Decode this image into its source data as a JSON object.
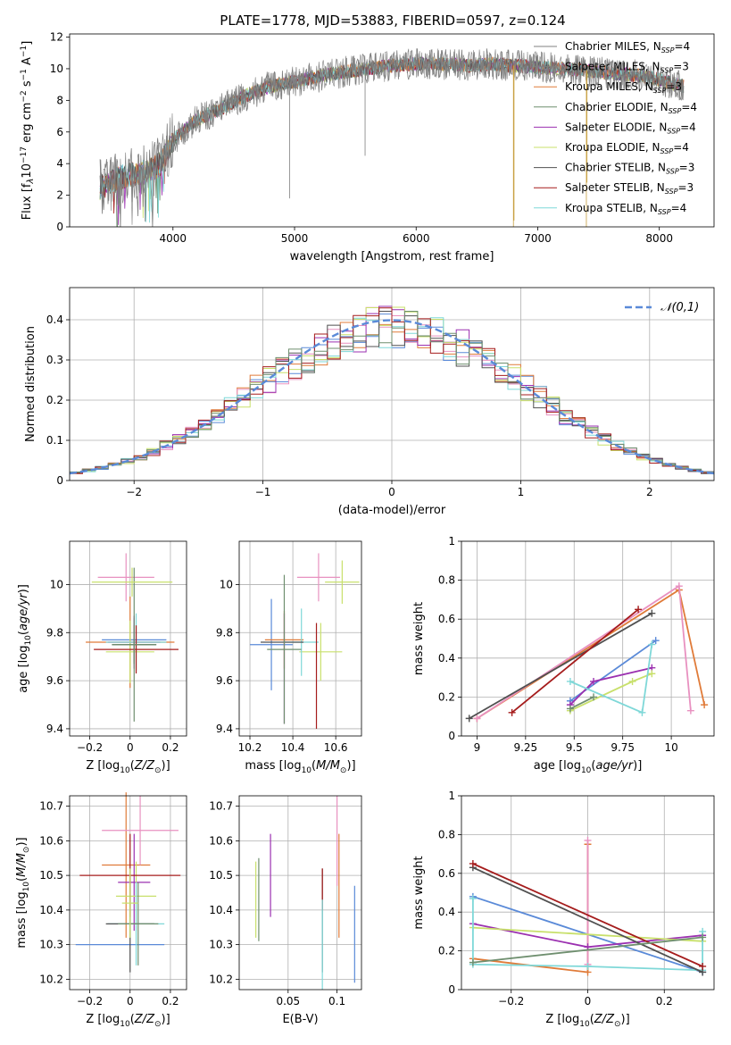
{
  "title": "PLATE=1778, MJD=53883, FIBERID=0597, z=0.124",
  "colors": {
    "chabrier_miles": "#808080",
    "salpeter_miles": "#7f7f7f",
    "kroupa_miles": "#e07b39",
    "chabrier_elodie": "#6f8f6f",
    "salpeter_elodie": "#9b30b0",
    "kroupa_elodie": "#c8e06b",
    "chabrier_stelib": "#505050",
    "salpeter_stelib": "#a51c1c",
    "kroupa_stelib": "#7fd8d8",
    "normal": "#5a8ad8"
  },
  "chart_data": [
    {
      "type": "line",
      "panel": "spectrum",
      "xlabel": "wavelength [Angstrom, rest frame]",
      "ylabel": "Flux [f_λ10^-17 erg cm^-2 s^-1 A^-1]",
      "xlim": [
        3150,
        8450
      ],
      "ylim": [
        0,
        12.2
      ],
      "xticks": [
        4000,
        5000,
        6000,
        7000,
        8000
      ],
      "yticks": [
        0,
        2,
        4,
        6,
        8,
        10,
        12
      ],
      "grid": false,
      "legend_position": "top-right",
      "legend": [
        "Chabrier MILES, N_SSP=4",
        "Salpeter MILES, N_SSP=3",
        "Kroupa MILES, N_SSP=3",
        "Chabrier ELODIE, N_SSP=4",
        "Salpeter ELODIE, N_SSP=4",
        "Kroupa ELODIE, N_SSP=4",
        "Chabrier STELIB, N_SSP=3",
        "Salpeter STELIB, N_SSP=3",
        "Kroupa STELIB, N_SSP=4"
      ],
      "continuum": [
        [
          3400,
          2.5
        ],
        [
          3600,
          3.2
        ],
        [
          3800,
          3.5
        ],
        [
          3900,
          4.0
        ],
        [
          4000,
          5.5
        ],
        [
          4200,
          6.8
        ],
        [
          4400,
          7.5
        ],
        [
          4600,
          8.3
        ],
        [
          4800,
          8.9
        ],
        [
          5000,
          9.2
        ],
        [
          5200,
          9.5
        ],
        [
          5400,
          9.8
        ],
        [
          5600,
          10.0
        ],
        [
          5800,
          10.2
        ],
        [
          6000,
          10.3
        ],
        [
          6200,
          10.3
        ],
        [
          6400,
          10.2
        ],
        [
          6600,
          10.3
        ],
        [
          6800,
          10.2
        ],
        [
          7000,
          10.1
        ],
        [
          7200,
          10.0
        ],
        [
          7400,
          9.9
        ],
        [
          7600,
          9.7
        ],
        [
          7800,
          9.6
        ],
        [
          8000,
          9.3
        ],
        [
          8200,
          8.9
        ]
      ]
    },
    {
      "type": "histogram",
      "panel": "residuals",
      "xlabel": "(data-model)/error",
      "ylabel": "Normed distribution",
      "xlim": [
        -2.5,
        2.5
      ],
      "ylim": [
        0,
        0.48
      ],
      "xticks": [
        -2,
        -1,
        0,
        1,
        2
      ],
      "yticks": [
        0.0,
        0.1,
        0.2,
        0.3,
        0.4
      ],
      "grid": true,
      "legend_position": "top-right",
      "legend_label": "𝒩(0,1)"
    },
    {
      "type": "errorbar",
      "panel": "age-vs-Z",
      "xlabel": "Z [log10(Z/Z⊙)]",
      "ylabel": "age [log10(age/yr)]",
      "xlim": [
        -0.3,
        0.28
      ],
      "ylim": [
        9.37,
        10.18
      ],
      "xticks": [
        -0.2,
        0.0,
        0.2
      ],
      "yticks": [
        9.4,
        9.6,
        9.8,
        10.0
      ],
      "grid": true,
      "points": [
        {
          "x": 0.02,
          "y": 9.77,
          "xerr": 0.16,
          "yerr": 0.09
        },
        {
          "x": 0.0,
          "y": 9.76,
          "xerr": 0.22,
          "yerr": 0.19
        },
        {
          "x": -0.02,
          "y": 10.03,
          "xerr": 0.14,
          "yerr": 0.1
        },
        {
          "x": 0.02,
          "y": 9.76,
          "xerr": 0.13,
          "yerr": 0.11
        },
        {
          "x": 0.0,
          "y": 9.72,
          "xerr": 0.12,
          "yerr": 0.13
        },
        {
          "x": 0.03,
          "y": 9.76,
          "xerr": 0.15,
          "yerr": 0.12
        },
        {
          "x": 0.02,
          "y": 9.75,
          "xerr": 0.11,
          "yerr": 0.08
        },
        {
          "x": 0.03,
          "y": 9.73,
          "xerr": 0.21,
          "yerr": 0.1
        },
        {
          "x": 0.02,
          "y": 9.75,
          "xerr": 0.11,
          "yerr": 0.32
        },
        {
          "x": 0.01,
          "y": 10.01,
          "xerr": 0.2,
          "yerr": 0.06
        }
      ]
    },
    {
      "type": "errorbar",
      "panel": "age-vs-mass",
      "xlabel": "mass [log10(M/M⊙)]",
      "ylabel": "",
      "xlim": [
        10.15,
        10.72
      ],
      "ylim": [
        9.37,
        10.18
      ],
      "xticks": [
        10.2,
        10.4,
        10.6
      ],
      "yticks": [
        9.4,
        9.6,
        9.8,
        10.0
      ],
      "grid": true,
      "points": [
        {
          "x": 10.3,
          "y": 9.75,
          "xerr": 0.1,
          "yerr": 0.19
        },
        {
          "x": 10.36,
          "y": 9.77,
          "xerr": 0.09,
          "yerr": 0.12
        },
        {
          "x": 10.52,
          "y": 10.03,
          "xerr": 0.1,
          "yerr": 0.1
        },
        {
          "x": 10.36,
          "y": 9.65,
          "xerr": 0.0,
          "yerr": 0.23
        },
        {
          "x": 10.53,
          "y": 9.72,
          "xerr": 0.1,
          "yerr": 0.12
        },
        {
          "x": 10.44,
          "y": 9.76,
          "xerr": 0.08,
          "yerr": 0.14
        },
        {
          "x": 10.35,
          "y": 9.76,
          "xerr": 0.1,
          "yerr": 0.0
        },
        {
          "x": 10.51,
          "y": 9.62,
          "xerr": 0.0,
          "yerr": 0.22
        },
        {
          "x": 10.36,
          "y": 9.73,
          "xerr": 0.08,
          "yerr": 0.31
        },
        {
          "x": 10.63,
          "y": 10.01,
          "xerr": 0.08,
          "yerr": 0.09
        }
      ]
    },
    {
      "type": "line",
      "panel": "mass-weight-vs-age",
      "xlabel": "age [log10(age/yr)]",
      "ylabel": "mass weight",
      "xlim": [
        8.92,
        10.22
      ],
      "ylim": [
        0.0,
        1.0
      ],
      "xticks": [
        9.0,
        9.25,
        9.5,
        9.75,
        10.0
      ],
      "yticks": [
        0.0,
        0.2,
        0.4,
        0.6,
        0.8,
        1.0
      ],
      "grid": true,
      "series": [
        {
          "color": "#5a8ad8",
          "x": [
            9.48,
            9.92
          ],
          "y": [
            0.18,
            0.49
          ]
        },
        {
          "color": "#e07b39",
          "x": [
            9.0,
            10.04,
            10.17
          ],
          "y": [
            0.09,
            0.75,
            0.16
          ]
        },
        {
          "color": "#e891c0",
          "x": [
            9.0,
            10.04,
            10.1
          ],
          "y": [
            0.09,
            0.77,
            0.13
          ]
        },
        {
          "color": "#9b30b0",
          "x": [
            9.48,
            9.6,
            9.9
          ],
          "y": [
            0.16,
            0.28,
            0.35
          ]
        },
        {
          "color": "#c8e06b",
          "x": [
            9.48,
            9.8,
            9.9
          ],
          "y": [
            0.13,
            0.28,
            0.32
          ]
        },
        {
          "color": "#7fd8d8",
          "x": [
            9.48,
            9.85,
            9.9
          ],
          "y": [
            0.28,
            0.12,
            0.47
          ]
        },
        {
          "color": "#505050",
          "x": [
            8.96,
            9.9
          ],
          "y": [
            0.09,
            0.63
          ]
        },
        {
          "color": "#a51c1c",
          "x": [
            9.18,
            9.83
          ],
          "y": [
            0.12,
            0.65
          ]
        },
        {
          "color": "#6f8f6f",
          "x": [
            9.48,
            9.6
          ],
          "y": [
            0.14,
            0.2
          ]
        }
      ]
    },
    {
      "type": "errorbar",
      "panel": "mass-vs-Z",
      "xlabel": "Z [log10(Z/Z⊙)]",
      "ylabel": "mass [log10(M/M⊙)]",
      "xlim": [
        -0.3,
        0.28
      ],
      "ylim": [
        10.17,
        10.73
      ],
      "xticks": [
        -0.2,
        0.0,
        0.2
      ],
      "yticks": [
        10.2,
        10.3,
        10.4,
        10.5,
        10.6,
        10.7
      ],
      "grid": true,
      "points": [
        {
          "x": -0.05,
          "y": 10.3,
          "xerr": 0.22,
          "yerr": 0.0
        },
        {
          "x": -0.02,
          "y": 10.53,
          "xerr": 0.12,
          "yerr": 0.21
        },
        {
          "x": 0.05,
          "y": 10.63,
          "xerr": 0.19,
          "yerr": 0.1
        },
        {
          "x": 0.02,
          "y": 10.48,
          "xerr": 0.08,
          "yerr": 0.14
        },
        {
          "x": 0.03,
          "y": 10.44,
          "xerr": 0.1,
          "yerr": 0.1
        },
        {
          "x": 0.03,
          "y": 10.36,
          "xerr": 0.14,
          "yerr": 0.12
        },
        {
          "x": 0.0,
          "y": 10.36,
          "xerr": 0.12,
          "yerr": 0.14
        },
        {
          "x": 0.0,
          "y": 10.5,
          "xerr": 0.25,
          "yerr": 0.12
        },
        {
          "x": 0.04,
          "y": 10.36,
          "xerr": 0.1,
          "yerr": 0.12
        },
        {
          "x": 0.0,
          "y": 10.42,
          "xerr": 0.04,
          "yerr": 0.1
        }
      ]
    },
    {
      "type": "errorbar",
      "panel": "mass-vs-EBV",
      "xlabel": "E(B-V)",
      "ylabel": "",
      "xlim": [
        0.0,
        0.125
      ],
      "ylim": [
        10.17,
        10.73
      ],
      "xticks": [
        0.05,
        0.1
      ],
      "yticks": [
        10.2,
        10.3,
        10.4,
        10.5,
        10.6,
        10.7
      ],
      "grid": true,
      "points": [
        {
          "x": 0.017,
          "y": 10.43,
          "yerr": 0.11,
          "color": "#c8e06b"
        },
        {
          "x": 0.02,
          "y": 10.43,
          "yerr": 0.12,
          "color": "#6f8f6f"
        },
        {
          "x": 0.032,
          "y": 10.5,
          "yerr": 0.12,
          "color": "#9b30b0"
        },
        {
          "x": 0.085,
          "y": 10.37,
          "yerr": 0.15,
          "color": "#505050"
        },
        {
          "x": 0.085,
          "y": 10.46,
          "yerr": 0.06,
          "color": "#a51c1c"
        },
        {
          "x": 0.085,
          "y": 10.3,
          "yerr": 0.13,
          "color": "#7fd8d8"
        },
        {
          "x": 0.1,
          "y": 10.6,
          "yerr": 0.13,
          "color": "#e891c0"
        },
        {
          "x": 0.102,
          "y": 10.47,
          "yerr": 0.15,
          "color": "#e07b39"
        },
        {
          "x": 0.118,
          "y": 10.33,
          "yerr": 0.14,
          "color": "#5a8ad8"
        }
      ]
    },
    {
      "type": "line",
      "panel": "mass-weight-vs-Z",
      "xlabel": "Z [log10(Z/Z⊙)]",
      "ylabel": "mass weight",
      "xlim": [
        -0.33,
        0.33
      ],
      "ylim": [
        0.0,
        1.0
      ],
      "xticks": [
        -0.2,
        0.0,
        0.2
      ],
      "yticks": [
        0.0,
        0.2,
        0.4,
        0.6,
        0.8,
        1.0
      ],
      "grid": true,
      "series": [
        {
          "color": "#5a8ad8",
          "x": [
            -0.3,
            0.3
          ],
          "y": [
            0.48,
            0.09
          ]
        },
        {
          "color": "#e07b39",
          "x": [
            -0.3,
            0.0,
            0.0
          ],
          "y": [
            0.16,
            0.09,
            0.75
          ]
        },
        {
          "color": "#e891c0",
          "x": [
            0.0,
            0.0
          ],
          "y": [
            0.13,
            0.77
          ]
        },
        {
          "color": "#9b30b0",
          "x": [
            -0.3,
            0.0,
            0.3
          ],
          "y": [
            0.34,
            0.22,
            0.28
          ]
        },
        {
          "color": "#c8e06b",
          "x": [
            -0.3,
            0.3
          ],
          "y": [
            0.32,
            0.25
          ]
        },
        {
          "color": "#7fd8d8",
          "x": [
            -0.3,
            -0.3,
            0.0,
            0.3,
            0.3
          ],
          "y": [
            0.47,
            0.13,
            0.12,
            0.1,
            0.3
          ]
        },
        {
          "color": "#505050",
          "x": [
            -0.3,
            0.3
          ],
          "y": [
            0.63,
            0.09
          ]
        },
        {
          "color": "#a51c1c",
          "x": [
            -0.3,
            0.3
          ],
          "y": [
            0.65,
            0.12
          ]
        },
        {
          "color": "#6f8f6f",
          "x": [
            -0.3,
            0.3
          ],
          "y": [
            0.14,
            0.27
          ]
        }
      ]
    }
  ]
}
